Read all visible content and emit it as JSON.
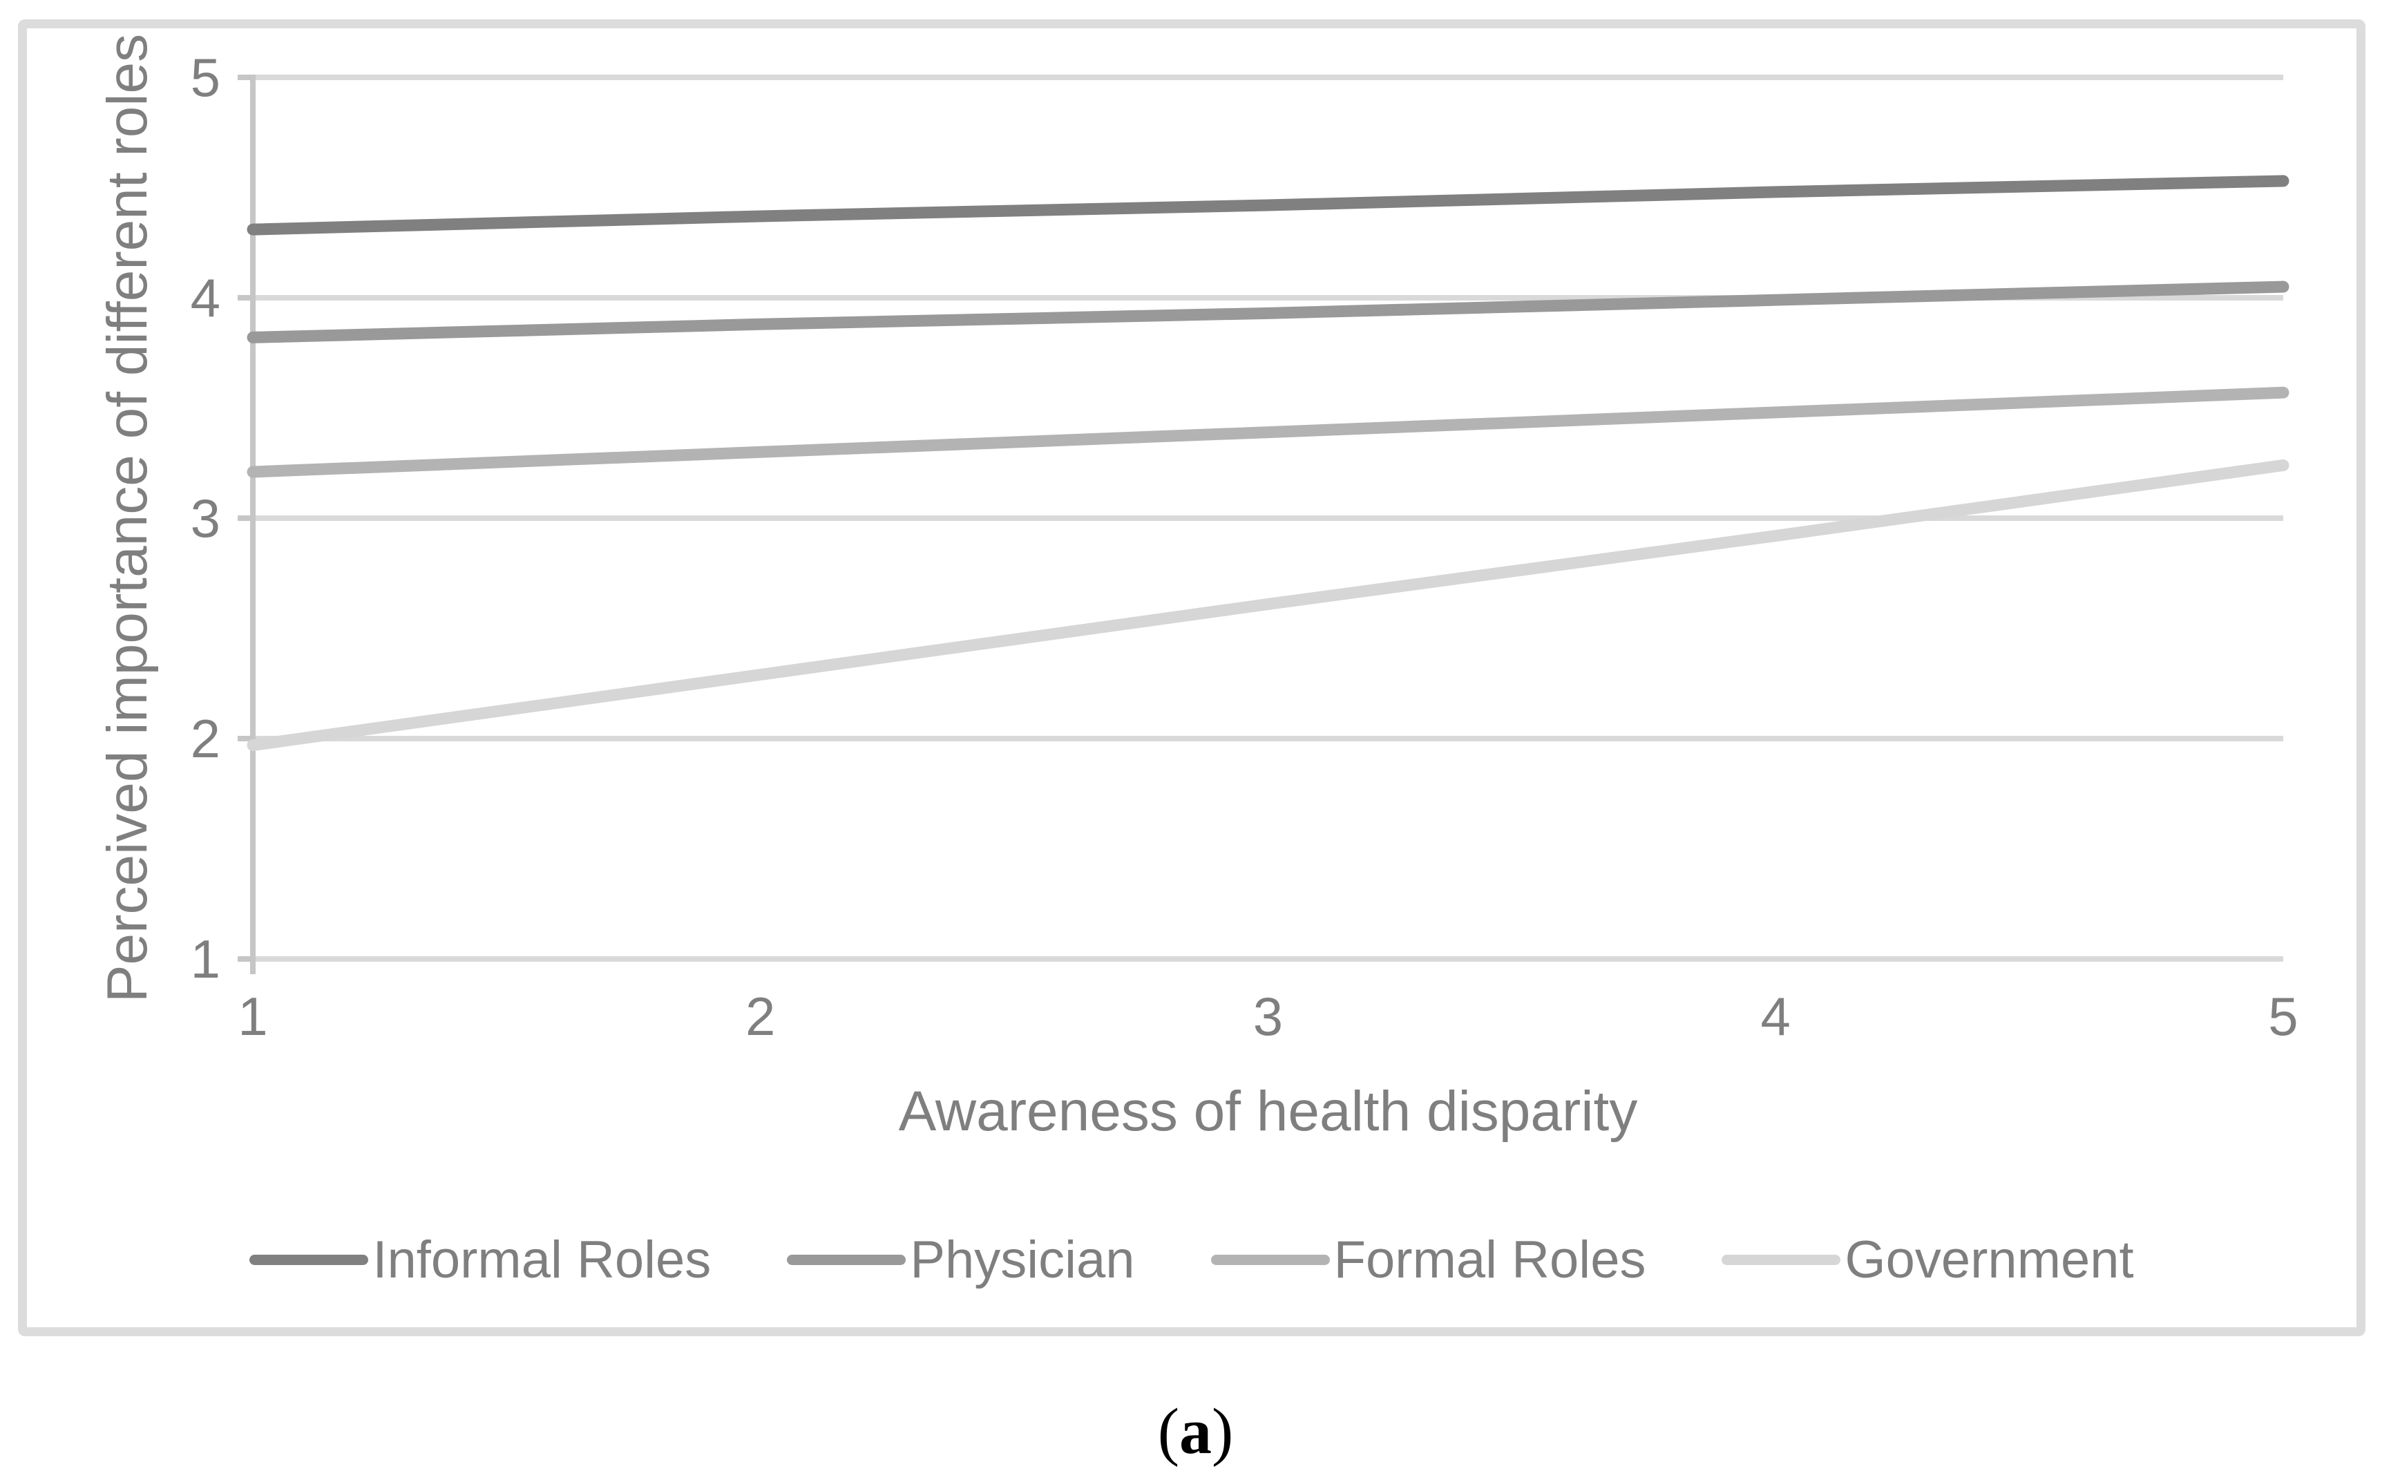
{
  "figure": {
    "caption": {
      "open": "(",
      "label": "a",
      "close": ")"
    }
  },
  "chart_data": {
    "type": "line",
    "title": "",
    "xlabel": "Awareness of health disparity",
    "ylabel": "Perceived importance of different roles",
    "x": [
      1,
      2,
      3,
      4,
      5
    ],
    "xticks": [
      1,
      2,
      3,
      4,
      5
    ],
    "yticks": [
      5,
      4,
      3,
      2,
      1
    ],
    "xlim": [
      1,
      5
    ],
    "ylim": [
      1,
      5
    ],
    "grid": true,
    "legend_position": "bottom",
    "series": [
      {
        "name": "Informal Roles",
        "color": "#808080",
        "values": [
          4.31,
          4.37,
          4.42,
          4.48,
          4.53
        ]
      },
      {
        "name": "Physician",
        "color": "#999999",
        "values": [
          3.82,
          3.88,
          3.93,
          3.99,
          4.05
        ]
      },
      {
        "name": "Formal Roles",
        "color": "#b3b3b3",
        "values": [
          3.21,
          3.3,
          3.39,
          3.48,
          3.57
        ]
      },
      {
        "name": "Government",
        "color": "#d6d6d6",
        "values": [
          1.97,
          2.29,
          2.61,
          2.92,
          3.24
        ]
      }
    ],
    "colors": {
      "gridline": "#d9d9d9",
      "axis_line": "#c6c6c6",
      "tick_text": "#7f7f7f",
      "frame_border": "#dcdcdc",
      "caption_text": "#000000"
    }
  }
}
